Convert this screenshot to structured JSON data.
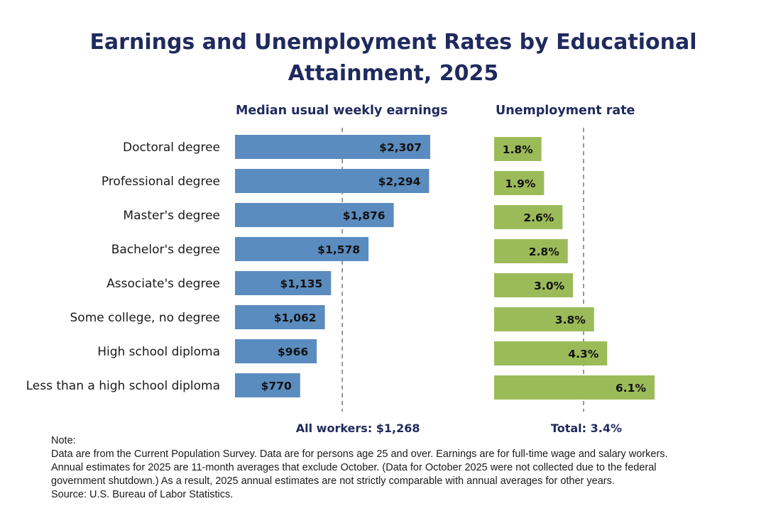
{
  "title_line1": "Earnings and Unemployment Rates by Educational",
  "title_line2": "Attainment, 2025",
  "chart_data": [
    {
      "type": "bar",
      "orientation": "horizontal",
      "title": "Median usual weekly earnings",
      "categories": [
        "Doctoral degree",
        "Professional degree",
        "Master's degree",
        "Bachelor's degree",
        "Associate's degree",
        "Some college, no degree",
        "High school diploma",
        "Less than a high school diploma"
      ],
      "values": [
        2307,
        2294,
        1876,
        1578,
        1135,
        1062,
        966,
        770
      ],
      "value_labels": [
        "$2,307",
        "$2,294",
        "$1,876",
        "$1,578",
        "$1,135",
        "$1,062",
        "$966",
        "$770"
      ],
      "reference_line": {
        "value": 1268,
        "label": "All workers: $1,268"
      },
      "color": "#5b8cbf",
      "grid": false
    },
    {
      "type": "bar",
      "orientation": "horizontal",
      "title": "Unemployment rate",
      "categories": [
        "Doctoral degree",
        "Professional degree",
        "Master's degree",
        "Bachelor's degree",
        "Associate's degree",
        "Some college, no degree",
        "High school diploma",
        "Less than a high school diploma"
      ],
      "values": [
        1.8,
        1.9,
        2.6,
        2.8,
        3.0,
        3.8,
        4.3,
        6.1
      ],
      "value_labels": [
        "1.8%",
        "1.9%",
        "2.6%",
        "2.8%",
        "3.0%",
        "3.8%",
        "4.3%",
        "6.1%"
      ],
      "reference_line": {
        "value": 3.4,
        "label": "Total: 3.4%"
      },
      "color": "#9bbb59",
      "grid": false
    }
  ],
  "note": {
    "heading": "Note:",
    "lines": [
      "Data are from the Current Population Survey. Data are for persons age 25 and over. Earnings are for full-time wage and salary workers.",
      "Annual estimates for 2025 are 11-month averages that exclude October. (Data for October 2025 were not collected due to the federal",
      "government shutdown.) As a result, 2025 annual estimates are not strictly comparable with annual averages for other years.",
      "Source: U.S. Bureau of Labor Statistics."
    ]
  }
}
